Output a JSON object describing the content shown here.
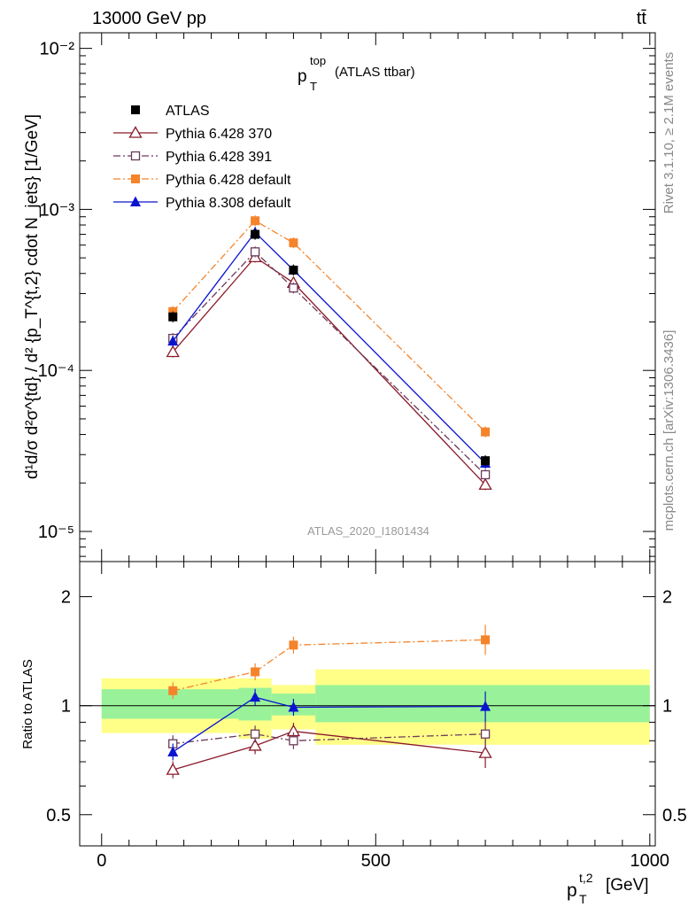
{
  "header": {
    "left": "13000 GeV pp",
    "right": "tt̄"
  },
  "side_labels": {
    "rivet": "Rivet 3.1.10, ≥ 2.1M events",
    "mcplots": "mcplots.cern.ch [arXiv:1306.3436]"
  },
  "chart_data": [
    {
      "type": "line",
      "panel": "main",
      "title_main": "p",
      "title_sup": "top",
      "title_sub": "T",
      "title_suffix": "(ATLAS ttbar)",
      "ylabel": "d¹d/σ d²σ^{td} / d² {p_T^{t,2} cdot N_jets} [1/GeV]",
      "yscale": "log",
      "ylim": [
        6.5e-06,
        0.0125
      ],
      "xlim": [
        -40,
        1010
      ],
      "y_tick_labels": [
        "10⁻⁵",
        "10⁻⁴",
        "10⁻³",
        "10⁻²"
      ],
      "watermark": "ATLAS_2020_I1801434",
      "legend_position": "top-left",
      "x": [
        130,
        280,
        350,
        700
      ],
      "series": [
        {
          "name": "ATLAS",
          "color": "#000000",
          "marker": "square-filled",
          "line": "none",
          "values": [
            0.000215,
            0.0007,
            0.00042,
            2.75e-05
          ]
        },
        {
          "name": "Pythia 6.428 370",
          "color": "#8b1a2b",
          "marker": "triangle-open",
          "line": "solid",
          "values": [
            0.00013,
            0.000505,
            0.00035,
            1.95e-05
          ]
        },
        {
          "name": "Pythia 6.428 391",
          "color": "#6b3a5a",
          "marker": "square-open",
          "line": "dashdot",
          "values": [
            0.000158,
            0.000545,
            0.000325,
            2.25e-05
          ]
        },
        {
          "name": "Pythia 6.428 default",
          "color": "#f5832a",
          "marker": "square-filled",
          "line": "dashdot",
          "values": [
            0.000232,
            0.00085,
            0.00062,
            4.15e-05
          ]
        },
        {
          "name": "Pythia 8.308 default",
          "color": "#0a14d0",
          "marker": "triangle-filled",
          "line": "solid",
          "values": [
            0.000152,
            0.00072,
            0.00042,
            2.65e-05
          ]
        }
      ]
    },
    {
      "type": "line",
      "panel": "ratio",
      "ylabel": "Ratio to ATLAS",
      "ylim": [
        0.41,
        2.5
      ],
      "xlim": [
        -40,
        1010
      ],
      "xlabel_main": "p",
      "xlabel_sup": "t,2",
      "xlabel_sub": "T",
      "xlabel_unit": "[GeV]",
      "x_tick_labels": [
        "0",
        "500",
        "1000"
      ],
      "y_tick_labels": [
        "0.5",
        "1",
        "2"
      ],
      "x": [
        130,
        280,
        350,
        700
      ],
      "bands": [
        {
          "x0": 0,
          "x1": 250,
          "inner": [
            0.92,
            1.11
          ],
          "outer": [
            0.84,
            1.19
          ]
        },
        {
          "x0": 250,
          "x1": 310,
          "inner": [
            0.91,
            1.12
          ],
          "outer": [
            0.81,
            1.19
          ]
        },
        {
          "x0": 310,
          "x1": 390,
          "inner": [
            0.94,
            1.08
          ],
          "outer": [
            0.86,
            1.14
          ]
        },
        {
          "x0": 390,
          "x1": 1000,
          "inner": [
            0.9,
            1.14
          ],
          "outer": [
            0.78,
            1.26
          ]
        }
      ],
      "series": [
        {
          "name": "Pythia 6.428 370",
          "color": "#8b1a2b",
          "values": [
            0.665,
            0.775,
            0.85,
            0.74
          ]
        },
        {
          "name": "Pythia 6.428 391",
          "color": "#6b3a5a",
          "values": [
            0.785,
            0.835,
            0.8,
            0.835
          ]
        },
        {
          "name": "Pythia 6.428 default",
          "color": "#f5832a",
          "values": [
            1.1,
            1.24,
            1.47,
            1.52
          ]
        },
        {
          "name": "Pythia 8.308 default",
          "color": "#0a14d0",
          "values": [
            0.745,
            1.055,
            0.99,
            0.995
          ]
        }
      ]
    }
  ]
}
